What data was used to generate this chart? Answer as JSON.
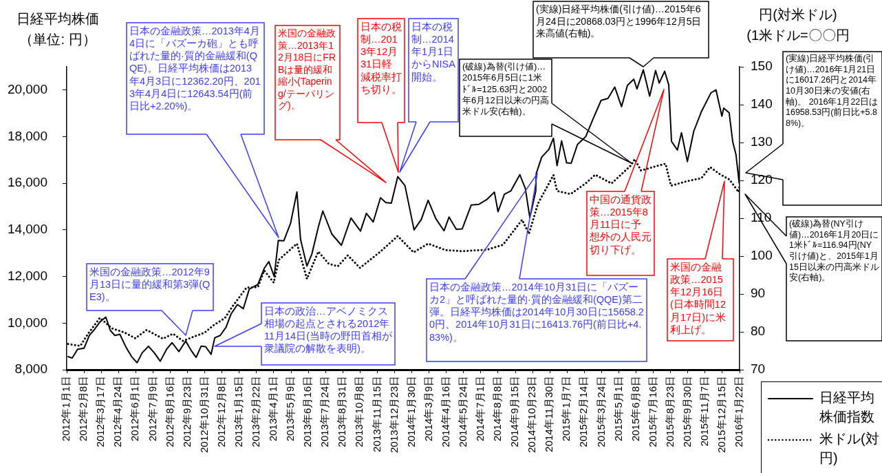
{
  "chart_data": {
    "type": "line",
    "ylabel": "日経平均株価（単位: 円）",
    "y2label": "円(対米ドル)\n(1米ドル=〇〇円",
    "xlim": [
      "2012-01-01",
      "2016-01-22"
    ],
    "xticks": [
      {
        "value": "2012-01-01",
        "label": "2012年1月1日"
      },
      {
        "value": "2012-02-08",
        "label": "2012年2月8日"
      },
      {
        "value": "2012-03-17",
        "label": "2012年3月17日"
      },
      {
        "value": "2012-04-24",
        "label": "2012年4月24日"
      },
      {
        "value": "2012-06-01",
        "label": "2012年6月1日"
      },
      {
        "value": "2012-07-09",
        "label": "2012年7月9日"
      },
      {
        "value": "2012-08-16",
        "label": "2012年8月16日"
      },
      {
        "value": "2012-09-23",
        "label": "2012年9月23日"
      },
      {
        "value": "2012-10-31",
        "label": "2012年10月31日"
      },
      {
        "value": "2012-12-08",
        "label": "2012年12月8日"
      },
      {
        "value": "2013-01-15",
        "label": "2013年1月15日"
      },
      {
        "value": "2013-02-22",
        "label": "2013年2月22日"
      },
      {
        "value": "2013-04-01",
        "label": "2013年4月1日"
      },
      {
        "value": "2013-05-09",
        "label": "2013年5月9日"
      },
      {
        "value": "2013-06-16",
        "label": "2013年6月16日"
      },
      {
        "value": "2013-07-24",
        "label": "2013年7月24日"
      },
      {
        "value": "2013-08-31",
        "label": "2013年8月31日"
      },
      {
        "value": "2013-10-08",
        "label": "2013年10月8日"
      },
      {
        "value": "2013-11-15",
        "label": "2013年11月15日"
      },
      {
        "value": "2013-12-23",
        "label": "2013年12月23日"
      },
      {
        "value": "2014-01-30",
        "label": "2014年1月30日"
      },
      {
        "value": "2014-03-09",
        "label": "2014年3月9日"
      },
      {
        "value": "2014-04-16",
        "label": "2014年4月16日"
      },
      {
        "value": "2014-05-24",
        "label": "2014年5月24日"
      },
      {
        "value": "2014-07-01",
        "label": "2014年7月1日"
      },
      {
        "value": "2014-08-08",
        "label": "2014年8月8日"
      },
      {
        "value": "2014-09-15",
        "label": "2014年9月15日"
      },
      {
        "value": "2014-10-23",
        "label": "2014年10月23日"
      },
      {
        "value": "2014-11-30",
        "label": "2014年11月30日"
      },
      {
        "value": "2015-01-07",
        "label": "2015年1月7日"
      },
      {
        "value": "2015-02-14",
        "label": "2015年2月14日"
      },
      {
        "value": "2015-03-24",
        "label": "2015年3月24日"
      },
      {
        "value": "2015-05-01",
        "label": "2015年5月1日"
      },
      {
        "value": "2015-06-08",
        "label": "2015年6月8日"
      },
      {
        "value": "2015-07-16",
        "label": "2015年7月16日"
      },
      {
        "value": "2015-08-23",
        "label": "2015年8月23日"
      },
      {
        "value": "2015-09-30",
        "label": "2015年9月30日"
      },
      {
        "value": "2015-11-07",
        "label": "2015年11月7日"
      },
      {
        "value": "2015-12-15",
        "label": "2015年12月15日"
      },
      {
        "value": "2016-01-22",
        "label": "2016年1月22日"
      }
    ],
    "ylim": [
      8000,
      21000
    ],
    "yticks": [
      {
        "value": 8000,
        "label": "8,000"
      },
      {
        "value": 10000,
        "label": "10,000"
      },
      {
        "value": 12000,
        "label": "12,000"
      },
      {
        "value": 14000,
        "label": "14,000"
      },
      {
        "value": 16000,
        "label": "16,000"
      },
      {
        "value": 18000,
        "label": "18,000"
      },
      {
        "value": 20000,
        "label": "20,000"
      }
    ],
    "y2lim": [
      70,
      150
    ],
    "y2ticks": [
      70,
      80,
      90,
      100,
      110,
      120,
      130,
      140,
      150
    ],
    "legend": "bottom right",
    "series": [
      {
        "name": "日経平均株価指数",
        "color": "#000000",
        "line_style": "solid",
        "x": [
          "2012-01-04",
          "2012-01-13",
          "2012-01-25",
          "2012-02-08",
          "2012-02-20",
          "2012-03-01",
          "2012-03-14",
          "2012-03-27",
          "2012-04-06",
          "2012-04-16",
          "2012-04-27",
          "2012-05-11",
          "2012-05-23",
          "2012-06-04",
          "2012-06-15",
          "2012-06-29",
          "2012-07-12",
          "2012-07-25",
          "2012-08-08",
          "2012-08-20",
          "2012-09-04",
          "2012-09-19",
          "2012-10-02",
          "2012-10-12",
          "2012-10-23",
          "2012-11-02",
          "2012-11-14",
          "2012-11-22",
          "2012-12-04",
          "2012-12-17",
          "2012-12-28",
          "2013-01-11",
          "2013-01-24",
          "2013-02-06",
          "2013-02-25",
          "2013-03-11",
          "2013-03-21",
          "2013-04-02",
          "2013-04-11",
          "2013-04-23",
          "2013-05-08",
          "2013-05-22",
          "2013-05-30",
          "2013-06-13",
          "2013-06-24",
          "2013-07-08",
          "2013-07-18",
          "2013-08-07",
          "2013-08-28",
          "2013-09-18",
          "2013-10-09",
          "2013-10-22",
          "2013-11-06",
          "2013-11-22",
          "2013-12-04",
          "2013-12-16",
          "2013-12-30",
          "2014-01-15",
          "2014-02-04",
          "2014-02-20",
          "2014-03-07",
          "2014-03-24",
          "2014-04-11",
          "2014-04-22",
          "2014-05-08",
          "2014-05-21",
          "2014-06-10",
          "2014-06-27",
          "2014-07-14",
          "2014-07-31",
          "2014-08-08",
          "2014-08-22",
          "2014-09-05",
          "2014-09-25",
          "2014-10-07",
          "2014-10-17",
          "2014-10-30",
          "2014-10-31",
          "2014-11-12",
          "2014-11-28",
          "2014-12-08",
          "2014-12-16",
          "2014-12-26",
          "2015-01-06",
          "2015-01-16",
          "2015-01-30",
          "2015-02-17",
          "2015-03-05",
          "2015-03-23",
          "2015-04-07",
          "2015-04-22",
          "2015-05-07",
          "2015-05-20",
          "2015-06-03",
          "2015-06-10",
          "2015-06-24",
          "2015-07-08",
          "2015-07-21",
          "2015-07-29",
          "2015-08-10",
          "2015-08-19",
          "2015-08-25",
          "2015-09-07",
          "2015-09-16",
          "2015-09-29",
          "2015-10-13",
          "2015-10-30",
          "2015-11-20",
          "2015-12-01",
          "2015-12-14",
          "2015-12-18",
          "2015-12-30",
          "2016-01-07",
          "2016-01-14",
          "2016-01-21",
          "2016-01-22"
        ],
        "values": [
          8560,
          8500,
          8880,
          8920,
          9480,
          9700,
          10050,
          10260,
          9690,
          9470,
          9520,
          8950,
          8560,
          8300,
          8720,
          9010,
          8720,
          8365,
          8880,
          9160,
          8780,
          9230,
          8800,
          8530,
          9010,
          8990,
          8660,
          9370,
          9470,
          9830,
          10395,
          10800,
          10620,
          11460,
          11660,
          12350,
          12640,
          12000,
          13550,
          13530,
          14280,
          15630,
          13590,
          12450,
          12970,
          14110,
          14810,
          13820,
          13340,
          14510,
          13950,
          14710,
          14340,
          15380,
          15170,
          15150,
          16290,
          15900,
          14000,
          14450,
          15270,
          14480,
          13960,
          14550,
          14030,
          14040,
          15070,
          15100,
          15300,
          15620,
          14780,
          15530,
          15670,
          16370,
          15780,
          14530,
          15660,
          16410,
          17120,
          17460,
          17935,
          16760,
          17820,
          16880,
          16860,
          17670,
          18000,
          18750,
          19560,
          19640,
          20130,
          19290,
          20200,
          20470,
          20050,
          20870,
          19740,
          20840,
          20300,
          20810,
          20220,
          17800,
          17430,
          18170,
          16930,
          18230,
          19080,
          19880,
          20010,
          18880,
          19230,
          19030,
          17770,
          17240,
          16020,
          16960
        ]
      },
      {
        "name": "米ドル(対円)",
        "color": "#000000",
        "line_style": "dotted",
        "axis": "y2",
        "x": [
          "2012-01-04",
          "2012-01-31",
          "2012-02-17",
          "2012-03-14",
          "2012-04-10",
          "2012-05-08",
          "2012-05-31",
          "2012-06-25",
          "2012-07-31",
          "2012-08-22",
          "2012-09-13",
          "2012-10-04",
          "2012-10-31",
          "2012-11-20",
          "2012-12-14",
          "2012-12-31",
          "2013-01-31",
          "2013-02-25",
          "2013-03-11",
          "2013-04-01",
          "2013-04-12",
          "2013-05-22",
          "2013-06-13",
          "2013-07-08",
          "2013-07-31",
          "2013-08-20",
          "2013-09-11",
          "2013-10-08",
          "2013-11-22",
          "2013-12-30",
          "2014-02-03",
          "2014-03-07",
          "2014-04-14",
          "2014-05-21",
          "2014-07-15",
          "2014-08-19",
          "2014-09-30",
          "2014-10-15",
          "2014-11-04",
          "2014-12-08",
          "2014-12-16",
          "2015-01-15",
          "2015-02-17",
          "2015-03-10",
          "2015-04-15",
          "2015-05-28",
          "2015-06-05",
          "2015-06-19",
          "2015-07-24",
          "2015-08-12",
          "2015-08-24",
          "2015-09-29",
          "2015-10-30",
          "2015-11-18",
          "2015-12-10",
          "2015-12-31",
          "2016-01-20",
          "2016-01-22"
        ],
        "values": [
          76.8,
          76.3,
          79.5,
          83.7,
          80.9,
          79.8,
          78.3,
          80.5,
          78.2,
          79.5,
          77.6,
          78.6,
          79.8,
          81.8,
          83.6,
          86.7,
          91.7,
          91.8,
          96.2,
          93.0,
          99.0,
          103.3,
          94.0,
          101.2,
          98.0,
          97.3,
          100.2,
          96.9,
          101.2,
          105.3,
          101.0,
          103.3,
          101.6,
          101.3,
          101.7,
          103.0,
          109.6,
          105.9,
          113.9,
          121.4,
          117.2,
          116.4,
          119.2,
          121.5,
          119.2,
          124.0,
          125.6,
          122.6,
          123.8,
          124.4,
          118.6,
          119.8,
          120.6,
          123.5,
          121.6,
          120.2,
          116.9,
          118.7
        ]
      }
    ],
    "annotations": [
      "日本の金融政策…2013年4月4日に「バズーカ砲」とも呼ばれた量的·質的金融緩和(QQE)。日経平均株価は2013年4月3日に12362.20円、2013年4月4日に12643.54円(前日比+2.20%)。",
      "米国の金融政策…2013年12月18日にFRBは量的緩和縮小(Tapering/テーパリング)。",
      "日本の税制…2013年12月31日軽減税率打ち切り。",
      "日本の税制…2014年1月1日からNISA開始。",
      "(破線)為替(引け値)…2015年6月5日に1米ﾄﾞﾙ=125.63円と2002年6月12日以来の円高米ドル安(右軸)。",
      "(実線)日経平均株価(引け値)…2015年6月24日に20868.03円と1996年12月5日来高値(右軸)。",
      "(実線)日経平均株価(引け値)…2016年1月21日に16017.26円と2014年10月30日来の安値(右軸)。 2016年1月22日は16958.53円(前日比+5.88%)。",
      "(破線)為替(NY引け値)…2016年1月20日に1米ﾄﾞﾙ=116.94円(NY引け値)と、2015年1月15日以来の円高米ドル安(右軸)。",
      "米国の金融政策…2012年9月13日に量的緩和第3弾(QE3)。",
      "日本の政治…アベノミクス相場の起点とされる2012年11月14日(当時の野田首相が衆議院の解散を表明)。",
      "日本の金融政策…2014年10月31日に「バズーカ2」と呼ばれた量的·質的金融緩和(QQE)第二弾。日経平均株価は2014年10月30日に15658.20円、2014年10月31日に16413.76円(前日比+4.83%)。",
      "中国の通貨政策…2015年8月11日に予想外の人民元切り下げ。",
      "米国の金融政策…2015年12月16日(日本時間12月17日)に米利上げ。"
    ]
  }
}
